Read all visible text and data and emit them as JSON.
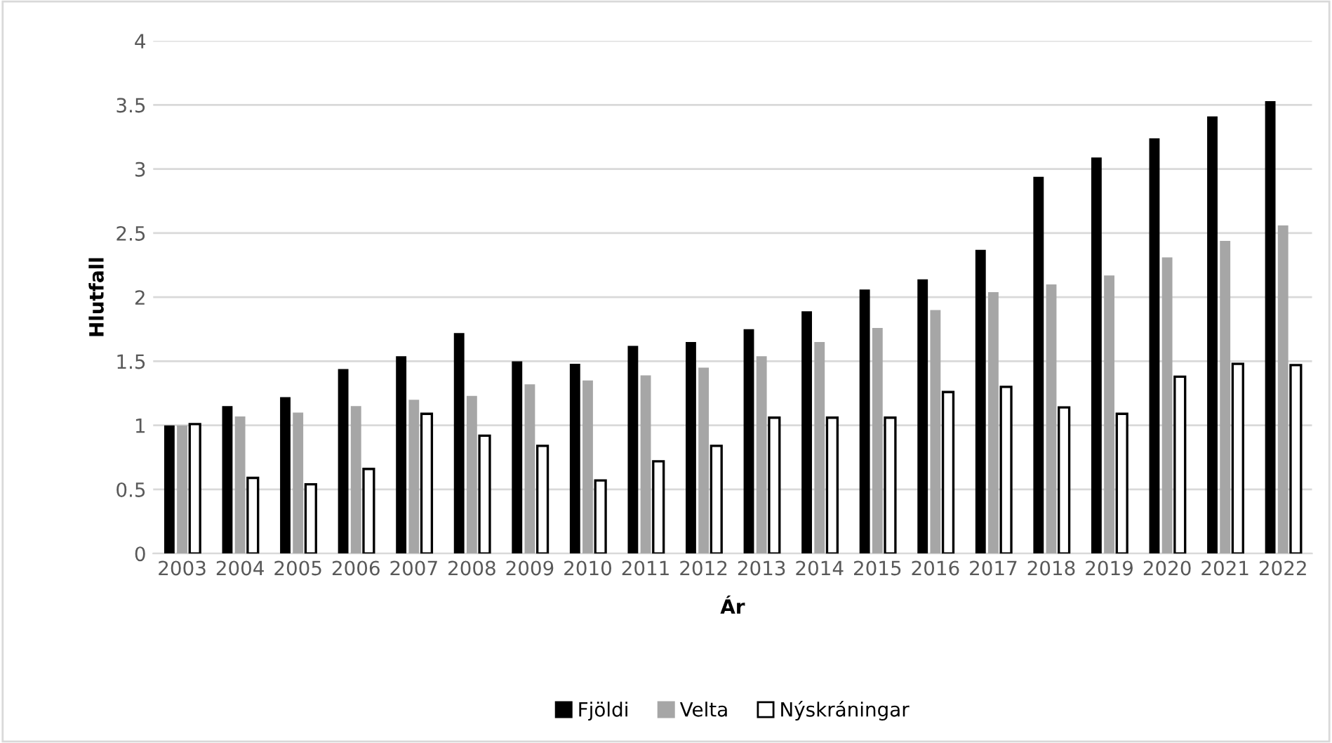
{
  "chart_data": {
    "type": "bar",
    "xlabel": "Ár",
    "ylabel": "Hlutfall",
    "categories": [
      "2003",
      "2004",
      "2005",
      "2006",
      "2007",
      "2008",
      "2009",
      "2010",
      "2011",
      "2012",
      "2013",
      "2014",
      "2015",
      "2016",
      "2017",
      "2018",
      "2019",
      "2020",
      "2021",
      "2022"
    ],
    "series": [
      {
        "name": "Fjöldi",
        "color": "#000000",
        "values": [
          1.0,
          1.15,
          1.22,
          1.44,
          1.54,
          1.72,
          1.5,
          1.48,
          1.62,
          1.65,
          1.75,
          1.89,
          2.06,
          2.14,
          2.37,
          2.94,
          3.09,
          3.24,
          3.41,
          3.53
        ]
      },
      {
        "name": "Velta",
        "color": "#a6a6a6",
        "values": [
          1.0,
          1.07,
          1.1,
          1.15,
          1.2,
          1.23,
          1.32,
          1.35,
          1.39,
          1.45,
          1.54,
          1.65,
          1.76,
          1.9,
          2.04,
          2.1,
          2.17,
          2.31,
          2.44,
          2.56
        ]
      },
      {
        "name": "Nýskráningar",
        "color": "#ffffff",
        "values": [
          1.01,
          0.59,
          0.54,
          0.66,
          1.09,
          0.92,
          0.84,
          0.57,
          0.72,
          0.84,
          1.06,
          1.06,
          1.06,
          1.26,
          1.3,
          1.14,
          1.09,
          1.38,
          1.48,
          1.47
        ]
      }
    ],
    "ylim": [
      0,
      4
    ],
    "yticks": [
      0,
      0.5,
      1,
      1.5,
      2,
      2.5,
      3,
      3.5,
      4
    ],
    "grid": "y",
    "legend": "bottom"
  }
}
